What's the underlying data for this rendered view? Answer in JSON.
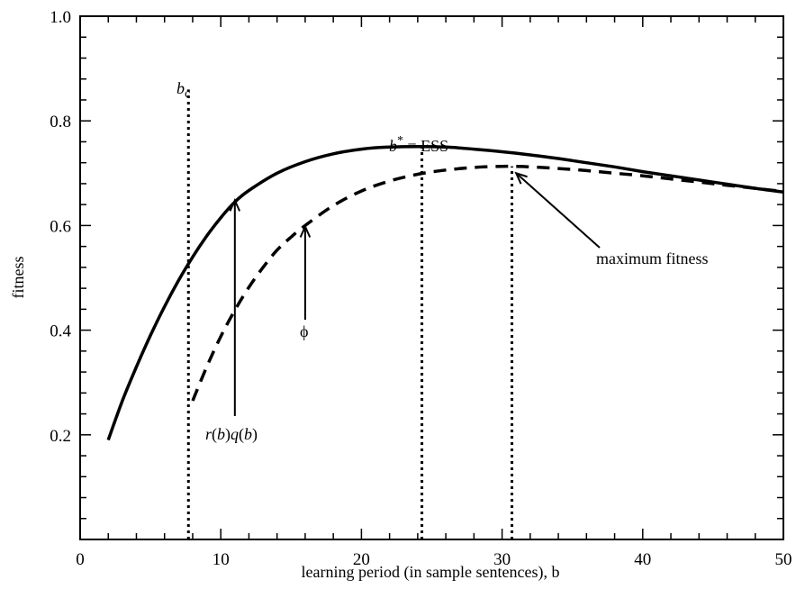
{
  "chart_data": {
    "type": "line",
    "xlabel": "learning period (in sample sentences),  b",
    "ylabel": "fitness",
    "xlim": [
      0,
      50
    ],
    "ylim": [
      0.0,
      1.0
    ],
    "x_ticks": [
      0,
      10,
      20,
      30,
      40,
      50
    ],
    "x_tick_labels": [
      "0",
      "10",
      "20",
      "30",
      "40",
      "50"
    ],
    "y_ticks": [
      0.2,
      0.4,
      0.6,
      0.8,
      1.0
    ],
    "y_tick_labels": [
      "0.2",
      "0.4",
      "0.6",
      "0.8",
      "1.0"
    ],
    "grid": false,
    "legend": "none",
    "series": [
      {
        "style": "solid",
        "color": "#000000",
        "x": [
          2,
          3,
          4,
          5,
          6,
          7,
          8,
          9,
          10,
          11,
          12,
          14,
          16,
          18,
          20,
          22,
          24,
          26,
          28,
          30,
          32,
          34,
          36,
          38,
          40,
          42,
          44,
          46,
          48,
          50
        ],
        "y": [
          0.19,
          0.265,
          0.33,
          0.39,
          0.445,
          0.495,
          0.54,
          0.58,
          0.615,
          0.645,
          0.667,
          0.7,
          0.722,
          0.737,
          0.746,
          0.75,
          0.751,
          0.75,
          0.746,
          0.741,
          0.735,
          0.728,
          0.72,
          0.712,
          0.703,
          0.695,
          0.687,
          0.679,
          0.671,
          0.664
        ]
      },
      {
        "style": "dashed",
        "color": "#000000",
        "x": [
          8,
          9,
          10,
          11,
          12,
          13,
          14,
          15,
          16,
          18,
          20,
          22,
          24,
          26,
          28,
          30,
          30.7,
          32,
          34,
          36,
          38,
          40,
          42,
          44,
          46,
          48,
          50
        ],
        "y": [
          0.265,
          0.33,
          0.388,
          0.438,
          0.482,
          0.52,
          0.553,
          0.578,
          0.6,
          0.638,
          0.666,
          0.685,
          0.698,
          0.706,
          0.711,
          0.713,
          0.713,
          0.712,
          0.709,
          0.705,
          0.7,
          0.695,
          0.689,
          0.683,
          0.677,
          0.671,
          0.665
        ]
      }
    ],
    "vertical_lines": [
      {
        "x": 7.7,
        "y_top": 0.86,
        "style": "dotted"
      },
      {
        "x": 24.3,
        "y_top": 0.75,
        "style": "dotted"
      },
      {
        "x": 30.7,
        "y_top": 0.713,
        "style": "dotted"
      }
    ],
    "annotations": {
      "bc": {
        "base": "b",
        "sub": "c"
      },
      "ess": {
        "base": "b",
        "sup": "*",
        "rest": " = ESS"
      },
      "phi": "ϕ",
      "rq": {
        "parts": [
          "r",
          "(",
          "b",
          ")",
          "q",
          "(",
          "b",
          ")"
        ]
      },
      "maxfit": "maximum fitness"
    }
  }
}
